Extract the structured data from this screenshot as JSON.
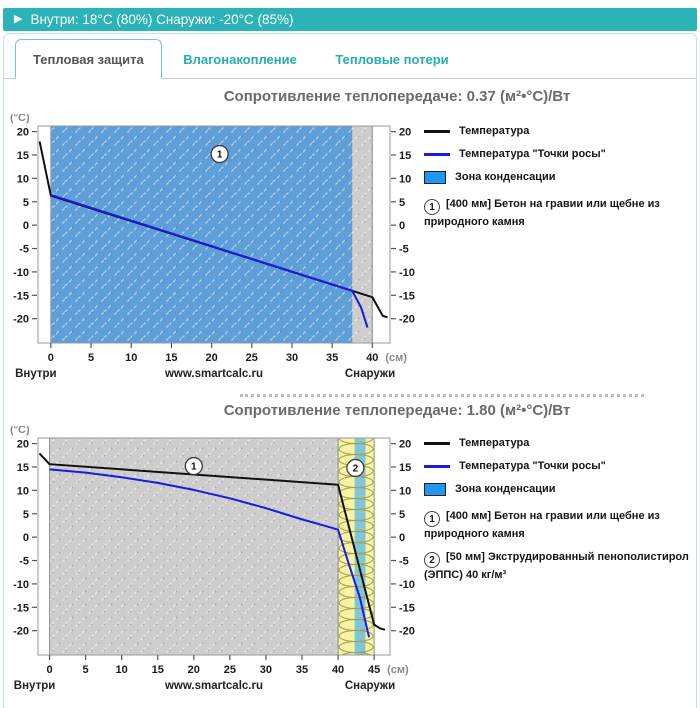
{
  "header": {
    "icon": "play-triangle",
    "text": "Внутри: 18°C (80%) Снаружи: -20°C (85%)"
  },
  "tabs": [
    {
      "label": "Тепловая защита",
      "active": true
    },
    {
      "label": "Влагонакопление",
      "active": false
    },
    {
      "label": "Тепловые потери",
      "active": false
    }
  ],
  "colors": {
    "accent_teal": "#2bb3b7",
    "tab_text_teal": "#25adb3",
    "title_gray": "#6b6b6b",
    "temperature_line": "#111111",
    "dewpoint_line": "#1a1ae0",
    "condensation_wide_fill": "#5f9fd9",
    "condensation_strip_fill": "#7fc6d6",
    "condensation_legend_swatch": "#2196f3",
    "concrete_fill": "#cdcdcd",
    "eps_fill": "#f8f3a3"
  },
  "chart_data": [
    {
      "type": "line",
      "title": "Сопротивление теплопередаче: 0.37 (м²•°С)/Вт",
      "ylabel": "(°С)",
      "xlabel": "(см)",
      "x_ticks": [
        0,
        5,
        10,
        15,
        20,
        25,
        30,
        35,
        40
      ],
      "y_ticks": [
        -20,
        -15,
        -10,
        -5,
        0,
        5,
        10,
        15,
        20
      ],
      "xlim": [
        -1.6,
        42.2
      ],
      "ylim": [
        -20,
        20
      ],
      "ylim_draw": [
        -25.2,
        21.2
      ],
      "bottom_left": "Внутри",
      "bottom_center": "www.smartcalc.ru",
      "bottom_right": "Снаружи",
      "layers": [
        {
          "num": "1",
          "material": "concrete",
          "from": 0,
          "to": 40,
          "marker_x": 21,
          "marker_y": 15.2
        }
      ],
      "condensation_zone": {
        "from": 0,
        "to": 37.5,
        "fill": "#5f9fd9"
      },
      "series": [
        {
          "name": "Температура",
          "color": "#111111",
          "points": [
            [
              -1.4,
              17.9
            ],
            [
              0,
              6.3
            ],
            [
              40,
              -15.4
            ],
            [
              41.3,
              -19.4
            ],
            [
              41.9,
              -19.7
            ]
          ]
        },
        {
          "name": "Температура \"Точки росы\"",
          "color": "#1a1ae0",
          "points": [
            [
              0,
              6.45
            ],
            [
              37.5,
              -14.05
            ],
            [
              38.6,
              -17.6
            ],
            [
              39.4,
              -21.9
            ]
          ]
        }
      ],
      "legend": {
        "zone_label": "Зона конденсации",
        "materials": [
          {
            "num": "1",
            "label": "[400 мм] Бетон на гравии или щебне из природного камня"
          }
        ]
      }
    },
    {
      "type": "line",
      "title": "Сопротивление теплопередаче: 1.80 (м²•°С)/Вт",
      "ylabel": "(°С)",
      "xlabel": "(см)",
      "x_ticks": [
        0,
        5,
        10,
        15,
        20,
        25,
        30,
        35,
        40,
        45
      ],
      "y_ticks": [
        -20,
        -15,
        -10,
        -5,
        0,
        5,
        10,
        15,
        20
      ],
      "xlim": [
        -1.6,
        47.2
      ],
      "ylim": [
        -20,
        20
      ],
      "ylim_draw": [
        -25.2,
        21.2
      ],
      "bottom_left": "Внутри",
      "bottom_center": "www.smartcalc.ru",
      "bottom_right": "Снаружи",
      "layers": [
        {
          "num": "1",
          "material": "concrete",
          "from": 0,
          "to": 40,
          "marker_x": 20,
          "marker_y": 15.2
        },
        {
          "num": "2",
          "material": "eps",
          "from": 40,
          "to": 45,
          "marker_x": 42.4,
          "marker_y": 14.8
        }
      ],
      "condensation_zone": {
        "from": 42.3,
        "to": 43.8,
        "fill": "#7fc6d6"
      },
      "series": [
        {
          "name": "Температура",
          "color": "#111111",
          "points": [
            [
              -1.4,
              17.9
            ],
            [
              0,
              15.6
            ],
            [
              40,
              11.2
            ],
            [
              45,
              -18.7
            ],
            [
              45.8,
              -19.5
            ],
            [
              46.5,
              -19.8
            ]
          ]
        },
        {
          "name": "Температура \"Точки росы\"",
          "color": "#1a1ae0",
          "points": [
            [
              0,
              14.5
            ],
            [
              5,
              13.8
            ],
            [
              10,
              12.8
            ],
            [
              15,
              11.6
            ],
            [
              20,
              10.1
            ],
            [
              25,
              8.3
            ],
            [
              30,
              6.2
            ],
            [
              35,
              3.8
            ],
            [
              38,
              2.5
            ],
            [
              40,
              1.6
            ],
            [
              41.5,
              -5.8
            ],
            [
              43,
              -12.8
            ],
            [
              44.3,
              -21.4
            ]
          ]
        }
      ],
      "legend": {
        "zone_label": "Зона конденсации",
        "materials": [
          {
            "num": "1",
            "label": "[400 мм] Бетон на гравии или щебне из природного камня"
          },
          {
            "num": "2",
            "label": "[50 мм] Экструдированный пенополистирол (ЭППС) 40 кг/м³"
          }
        ]
      }
    }
  ]
}
